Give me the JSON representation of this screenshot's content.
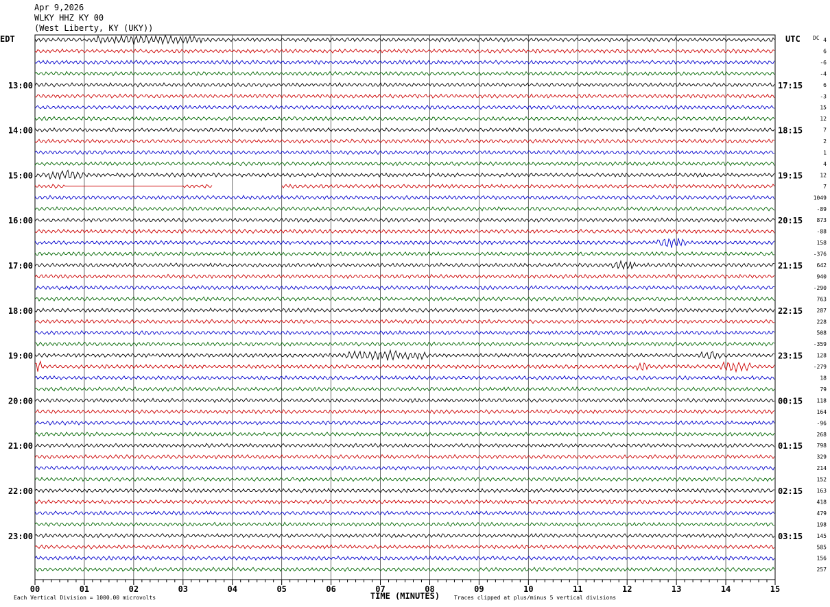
{
  "header": {
    "date": "Apr 9,2026",
    "station": "WLKY HHZ KY 00",
    "location": "(West Liberty, KY (UKY))"
  },
  "labels": {
    "left_tz": "EDT",
    "right_tz": "UTC",
    "dc_label": "DC",
    "x_axis_title": "TIME (MINUTES)",
    "scale_note": "Each Vertical Division = 1000.00 microvolts",
    "clip_note": "Traces clipped at plus/minus 5 vertical divisions"
  },
  "colors": {
    "trace_cycle": [
      "#000000",
      "#cc0000",
      "#0000cc",
      "#006600"
    ],
    "grid": "#000000",
    "background": "#ffffff"
  },
  "chart_data": {
    "type": "line",
    "title": "WLKY HHZ KY 00",
    "xlabel": "TIME (MINUTES)",
    "ylabel": "",
    "x_ticks": [
      "00",
      "01",
      "02",
      "03",
      "04",
      "05",
      "06",
      "07",
      "08",
      "09",
      "10",
      "11",
      "12",
      "13",
      "14",
      "15"
    ],
    "xlim": [
      0,
      15
    ],
    "minutes_per_line": 15,
    "local_hour_labels": [
      "13:00",
      "14:00",
      "15:00",
      "16:00",
      "17:00",
      "18:00",
      "19:00",
      "20:00",
      "21:00",
      "22:00",
      "23:00"
    ],
    "utc_hour_labels": [
      "17:15",
      "18:15",
      "19:15",
      "20:15",
      "21:15",
      "22:15",
      "23:15",
      "00:15",
      "01:15",
      "02:15",
      "03:15"
    ],
    "dc_offsets": [
      4,
      6,
      -6,
      -4,
      6,
      -3,
      15,
      12,
      7,
      2,
      1,
      4,
      12,
      7,
      1049,
      -89,
      873,
      -88,
      158,
      -376,
      642,
      940,
      -290,
      763,
      287,
      228,
      508,
      -359,
      128,
      -279,
      18,
      79,
      118,
      164,
      -96,
      268,
      798,
      329,
      214,
      152,
      163,
      418,
      479,
      198,
      145,
      585,
      156,
      257
    ],
    "gaps": [
      {
        "line": 13,
        "start_min": 3.6,
        "end_min": 5.0
      }
    ],
    "flatline_segments": [
      {
        "line": 13,
        "start_min": 0.6,
        "end_min": 3.0
      }
    ],
    "events": [
      {
        "line": 0,
        "start_min": 1.2,
        "end_min": 3.4,
        "amp": 1.7
      },
      {
        "line": 12,
        "start_min": 0.3,
        "end_min": 1.0,
        "amp": 2.0
      },
      {
        "line": 18,
        "start_min": 12.6,
        "end_min": 13.2,
        "amp": 2.4
      },
      {
        "line": 20,
        "start_min": 11.7,
        "end_min": 12.2,
        "amp": 1.8
      },
      {
        "line": 28,
        "start_min": 6.3,
        "end_min": 8.0,
        "amp": 1.8
      },
      {
        "line": 29,
        "start_min": 0.0,
        "end_min": 0.12,
        "amp": 5.0
      },
      {
        "line": 29,
        "start_min": 13.9,
        "end_min": 14.5,
        "amp": 2.2
      },
      {
        "line": 29,
        "start_min": 12.2,
        "end_min": 12.5,
        "amp": 1.5
      },
      {
        "line": 28,
        "start_min": 13.5,
        "end_min": 13.9,
        "amp": 1.5
      }
    ]
  }
}
